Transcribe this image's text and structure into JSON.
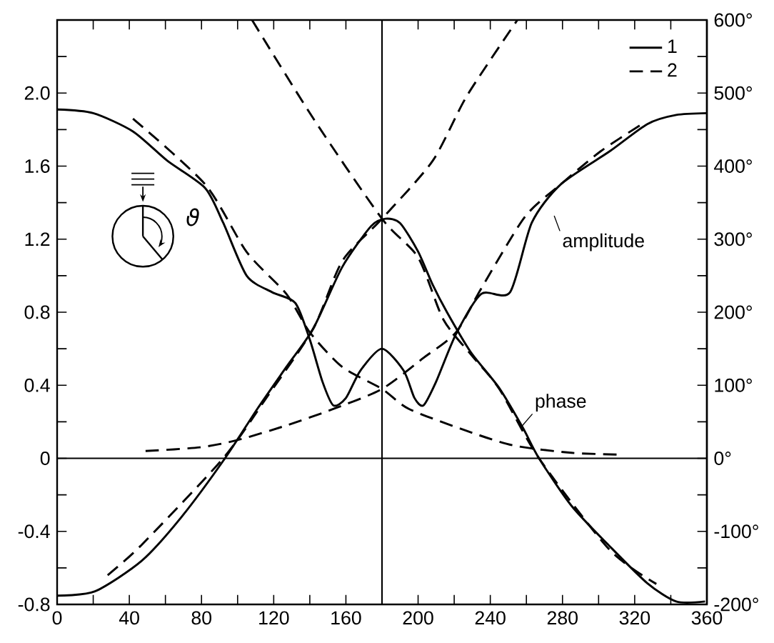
{
  "chart_data": {
    "type": "line",
    "xlim": [
      0,
      360
    ],
    "xticks": [
      0,
      {
        "value": 20,
        "label": null
      },
      40,
      {
        "value": 60,
        "label": null
      },
      80,
      {
        "value": 100,
        "label": null
      },
      120,
      {
        "value": 140,
        "label": null
      },
      160,
      {
        "value": 180,
        "label": null
      },
      200,
      {
        "value": 220,
        "label": null
      },
      240,
      {
        "value": 260,
        "label": null
      },
      280,
      {
        "value": 300,
        "label": null
      },
      320,
      {
        "value": 340,
        "label": null
      },
      360
    ],
    "ylim": [
      -0.8,
      2.4
    ],
    "yticks": [
      -0.8,
      {
        "value": -0.6,
        "label": null
      },
      -0.4,
      {
        "value": -0.2,
        "label": null
      },
      0,
      {
        "value": 0.2,
        "label": null
      },
      0.4,
      {
        "value": 0.6,
        "label": null
      },
      0.8,
      {
        "value": 1.0,
        "label": null
      },
      1.2,
      {
        "value": 1.4,
        "label": null
      },
      1.6,
      {
        "value": 1.8,
        "label": null
      },
      {
        "value": 2.0,
        "label": "2.0"
      },
      {
        "value": 2.2,
        "label": null
      }
    ],
    "y2lim": [
      -200,
      600
    ],
    "y2ticks": [
      {
        "value": -200,
        "label": "-200°"
      },
      {
        "value": -150,
        "label": null
      },
      {
        "value": -100,
        "label": "-100°"
      },
      {
        "value": -50,
        "label": null
      },
      {
        "value": 0,
        "label": "0°"
      },
      {
        "value": 50,
        "label": null
      },
      {
        "value": 100,
        "label": "100°"
      },
      {
        "value": 150,
        "label": null
      },
      {
        "value": 200,
        "label": "200°"
      },
      {
        "value": 250,
        "label": null
      },
      {
        "value": 300,
        "label": "300°"
      },
      {
        "value": 350,
        "label": null
      },
      {
        "value": 400,
        "label": "400°"
      },
      {
        "value": 450,
        "label": null
      },
      {
        "value": 500,
        "label": "500°"
      },
      {
        "value": 550,
        "label": null
      },
      {
        "value": 600,
        "label": "600°"
      }
    ],
    "legend": "top right",
    "ref_lines": [
      {
        "axis": "y",
        "value": 0
      },
      {
        "axis": "x",
        "value": 180
      }
    ],
    "annotations": [
      "amplitude",
      {
        "text": "phase",
        "x": 257,
        "y": 0.17
      },
      "ϑ"
    ],
    "series": [
      {
        "name": "1",
        "color": "#000000",
        "line_style": "solid",
        "x": [
          0,
          20,
          42,
          61,
          82,
          92,
          105,
          119,
          132,
          140,
          147,
          153,
          160,
          168,
          180,
          192,
          198,
          203,
          210,
          221,
          235,
          251,
          263,
          279,
          306,
          327,
          343,
          360
        ],
        "values": [
          1.91,
          1.89,
          1.79,
          1.63,
          1.48,
          1.29,
          1.0,
          0.91,
          0.85,
          0.65,
          0.42,
          0.29,
          0.33,
          0.48,
          0.6,
          0.48,
          0.33,
          0.29,
          0.42,
          0.68,
          0.9,
          0.91,
          1.29,
          1.5,
          1.68,
          1.83,
          1.88,
          1.89
        ]
      },
      {
        "name": "2",
        "color": "#000000",
        "line_style": "dashed",
        "x": [
          42,
          82,
          105,
          127,
          140,
          158,
          180,
          195,
          227,
          253,
          285,
          314
        ],
        "values": [
          1.86,
          1.5,
          1.13,
          0.9,
          0.69,
          0.5,
          0.38,
          0.27,
          0.15,
          0.07,
          0.03,
          0.02
        ]
      },
      {
        "color": "#000000",
        "line_style": "dashed",
        "x": [
          49,
          79,
          100,
          127,
          153,
          180,
          203,
          221,
          235,
          259,
          279,
          301,
          324
        ],
        "values": [
          0.04,
          0.06,
          0.1,
          0.18,
          0.27,
          0.38,
          0.55,
          0.69,
          0.93,
          1.32,
          1.5,
          1.68,
          1.83
        ]
      },
      {
        "color": "#000000",
        "line_style": "solid",
        "axis": "y2",
        "x": [
          0,
          21,
          47,
          69,
          93,
          111,
          127,
          142,
          158,
          174,
          182,
          190,
          200,
          208,
          216,
          229,
          245,
          258,
          267,
          285,
          306,
          327,
          343,
          359
        ],
        "values": [
          -188,
          -182,
          -140,
          -80,
          0,
          68,
          125,
          178,
          262,
          318,
          328,
          322,
          283,
          238,
          200,
          146,
          96,
          42,
          0,
          -65,
          -120,
          -171,
          -196,
          -196
        ]
      },
      {
        "color": "#000000",
        "line_style": "dashed",
        "axis": "y2",
        "x": [
          108,
          142,
          180,
          200,
          214,
          230,
          245,
          267,
          306,
          332
        ],
        "values": [
          600,
          465,
          328,
          275,
          190,
          140,
          95,
          0,
          -125,
          -172
        ]
      },
      {
        "color": "#000000",
        "line_style": "dashed",
        "axis": "y2",
        "x": [
          28,
          47,
          92,
          116,
          142,
          158,
          180,
          208,
          227,
          255
        ],
        "values": [
          -160,
          -118,
          0,
          83,
          178,
          270,
          328,
          407,
          496,
          600
        ]
      }
    ]
  }
}
